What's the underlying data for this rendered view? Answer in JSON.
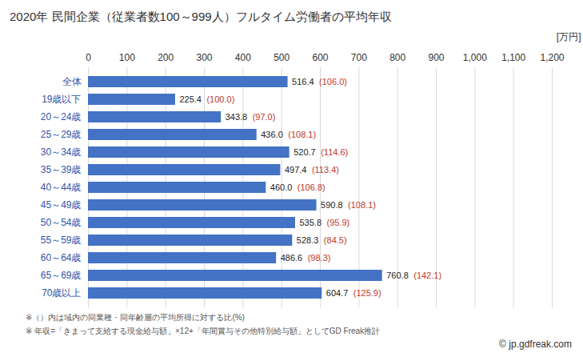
{
  "chart_data": {
    "type": "bar",
    "title": "2020年 民間企業（従業者数100～999人）フルタイム労働者の平均年収",
    "orientation": "horizontal",
    "categories": [
      "全体",
      "19歳以下",
      "20～24歳",
      "25～29歳",
      "30～34歳",
      "35～39歳",
      "40～44歳",
      "45～49歳",
      "50～54歳",
      "55～59歳",
      "60～64歳",
      "65～69歳",
      "70歳以上"
    ],
    "values": [
      516.4,
      225.4,
      343.8,
      436.0,
      520.7,
      497.4,
      460.0,
      590.8,
      535.8,
      528.3,
      486.6,
      760.8,
      604.7
    ],
    "value_labels": [
      "516.4",
      "225.4",
      "343.8",
      "436.0",
      "520.7",
      "497.4",
      "460.0",
      "590.8",
      "535.8",
      "528.3",
      "486.6",
      "760.8",
      "604.7"
    ],
    "ratio_labels": [
      "(106.0)",
      "(100.0)",
      "(97.0)",
      "(108.1)",
      "(114.6)",
      "(113.4)",
      "(106.8)",
      "(108.1)",
      "(95.9)",
      "(84.5)",
      "(98.3)",
      "(142.1)",
      "(125.9)"
    ],
    "data_labels": true,
    "color": "#4472c4",
    "xlabel": "[万円]",
    "xlim": [
      0,
      1200
    ],
    "xticks": [
      0,
      100,
      200,
      300,
      400,
      500,
      600,
      700,
      800,
      900,
      1000,
      1100,
      1200
    ],
    "grid": true,
    "notes": [
      "※（）内は域内の同業種・同年齢層の平均所得に対する比(%)",
      "※ 年収=「きまって支給する現金給与額」×12+「年間賞与その他特別給与額」としてGD Freak推計"
    ],
    "source": "© jp.gdfreak.com"
  }
}
